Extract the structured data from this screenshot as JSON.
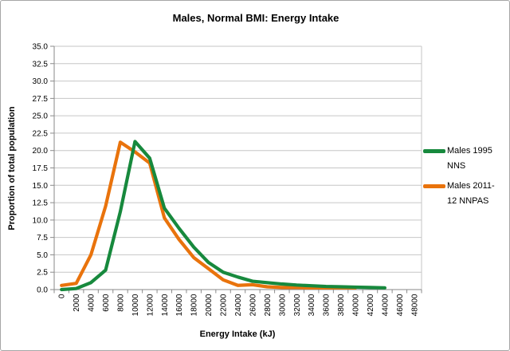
{
  "window": {
    "background": "#ffffff",
    "border_color": "#a6a6a6"
  },
  "colors": {
    "gridline": "#c6c6c6",
    "axis": "#8a8a8a",
    "text": "#000000",
    "series_green": "#17893d",
    "series_orange": "#e9730c"
  },
  "chart_data": {
    "type": "line",
    "title": "Males, Normal BMI: Energy Intake",
    "xlabel": "Energy Intake (kJ)",
    "ylabel": "Proportion of total population",
    "x_axis_mode": "category",
    "x_tick_labels": [
      "0",
      "2000",
      "4000",
      "6000",
      "8000",
      "10000",
      "12000",
      "14000",
      "16000",
      "18000",
      "20000",
      "22000",
      "24000",
      "26000",
      "28000",
      "30000",
      "32000",
      "34000",
      "36000",
      "38000",
      "40000",
      "42000",
      "44000",
      "46000",
      "48000"
    ],
    "y_tick_labels": [
      "0.0",
      "2.5",
      "5.0",
      "7.5",
      "10.0",
      "12.5",
      "15.0",
      "17.5",
      "20.0",
      "22.5",
      "25.0",
      "27.5",
      "30.0",
      "32.5",
      "35.0"
    ],
    "ylim": [
      0,
      35
    ],
    "y_tick_step": 2.5,
    "grid": true,
    "legend_position": "right",
    "series": [
      {
        "name": "Males 1995 NNS",
        "color": "#17893d",
        "values": [
          0.0,
          0.15,
          1.0,
          2.8,
          11.2,
          21.3,
          18.9,
          11.7,
          8.8,
          6.1,
          3.9,
          2.5,
          1.8,
          1.2,
          1.0,
          0.8,
          0.65,
          0.55,
          0.45,
          0.4,
          0.35,
          0.3,
          0.25,
          null,
          null
        ]
      },
      {
        "name": "Males 2011-12 NNPAS",
        "color": "#e9730c",
        "values": [
          0.6,
          0.9,
          5.0,
          12.0,
          21.2,
          19.8,
          18.2,
          10.3,
          7.2,
          4.6,
          3.0,
          1.4,
          0.6,
          0.7,
          0.4,
          0.3,
          0.3,
          0.25,
          0.25,
          0.25,
          0.25,
          null,
          null,
          null,
          null
        ]
      }
    ]
  }
}
